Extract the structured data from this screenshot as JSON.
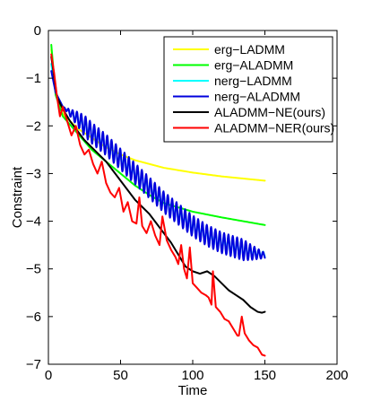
{
  "chart_data": {
    "type": "line",
    "xlabel": "Time",
    "ylabel": "Constraint",
    "xlim": [
      0,
      200
    ],
    "ylim": [
      -7,
      0
    ],
    "xticks": [
      0,
      50,
      100,
      150,
      200
    ],
    "yticks": [
      0,
      -1,
      -2,
      -3,
      -4,
      -5,
      -6,
      -7
    ],
    "grid": false,
    "legend_position": "top-right",
    "series": [
      {
        "name": "erg−LADMM",
        "color": "#ffff00",
        "style": "smooth",
        "x": [
          2,
          5,
          10,
          20,
          30,
          40,
          50,
          60,
          80,
          100,
          120,
          150
        ],
        "y": [
          -0.4,
          -1.3,
          -1.75,
          -2.05,
          -2.25,
          -2.45,
          -2.6,
          -2.72,
          -2.88,
          -2.98,
          -3.06,
          -3.15
        ]
      },
      {
        "name": "erg−ALADMM",
        "color": "#00ff00",
        "style": "smooth",
        "x": [
          2,
          5,
          10,
          20,
          30,
          40,
          50,
          60,
          70,
          80,
          100,
          120,
          150
        ],
        "y": [
          -0.3,
          -1.35,
          -1.8,
          -2.15,
          -2.5,
          -2.75,
          -3.0,
          -3.25,
          -3.45,
          -3.62,
          -3.8,
          -3.92,
          -4.08
        ]
      },
      {
        "name": "nerg−LADMM",
        "color": "#00ffff",
        "style": "oscillating",
        "amp": 0.18,
        "x": [
          2,
          5,
          10,
          20,
          30,
          40,
          50,
          60,
          70,
          80,
          90,
          100,
          110,
          120,
          130,
          140,
          150
        ],
        "y": [
          -0.7,
          -1.3,
          -1.6,
          -1.85,
          -2.15,
          -2.4,
          -2.7,
          -3.0,
          -3.3,
          -3.6,
          -3.85,
          -4.1,
          -4.3,
          -4.45,
          -4.55,
          -4.65,
          -4.7
        ]
      },
      {
        "name": "nerg−ALADMM",
        "color": "#0000dd",
        "style": "oscillating",
        "amp": 0.22,
        "x": [
          2,
          5,
          10,
          20,
          30,
          40,
          50,
          60,
          70,
          80,
          90,
          100,
          110,
          120,
          130,
          140,
          150
        ],
        "y": [
          -0.85,
          -1.3,
          -1.6,
          -1.85,
          -2.15,
          -2.4,
          -2.7,
          -3.0,
          -3.3,
          -3.6,
          -3.85,
          -4.1,
          -4.3,
          -4.45,
          -4.55,
          -4.65,
          -4.72
        ]
      },
      {
        "name": "ALADMM−NE(ours)",
        "color": "#000000",
        "style": "line",
        "x": [
          2,
          6,
          10,
          15,
          20,
          25,
          30,
          35,
          40,
          45,
          50,
          55,
          60,
          65,
          70,
          75,
          80,
          85,
          90,
          95,
          100,
          105,
          110,
          115,
          120,
          125,
          130,
          135,
          140,
          145,
          148,
          150
        ],
        "y": [
          -0.55,
          -1.4,
          -1.65,
          -1.9,
          -2.1,
          -2.3,
          -2.45,
          -2.6,
          -2.75,
          -2.95,
          -3.15,
          -3.35,
          -3.55,
          -3.7,
          -3.85,
          -4.05,
          -4.25,
          -4.45,
          -4.7,
          -4.95,
          -5.05,
          -5.1,
          -5.05,
          -5.15,
          -5.3,
          -5.45,
          -5.55,
          -5.65,
          -5.8,
          -5.9,
          -5.92,
          -5.9
        ]
      },
      {
        "name": "ALADMM−NER(ours)",
        "color": "#ff0000",
        "style": "line",
        "x": [
          2,
          4,
          6,
          8,
          10,
          13,
          16,
          19,
          22,
          25,
          28,
          31,
          34,
          37,
          40,
          43,
          46,
          49,
          52,
          55,
          58,
          61,
          63,
          65,
          68,
          71,
          74,
          77,
          79,
          82,
          85,
          88,
          90,
          92,
          94,
          96,
          98,
          100,
          103,
          106,
          109,
          111,
          113,
          114,
          116,
          119,
          122,
          125,
          128,
          131,
          132,
          134,
          136,
          139,
          142,
          145,
          148,
          150
        ],
        "y": [
          -0.5,
          -0.9,
          -1.4,
          -1.8,
          -1.6,
          -1.9,
          -2.2,
          -2.0,
          -2.4,
          -2.6,
          -2.5,
          -2.8,
          -3.0,
          -2.75,
          -3.2,
          -3.4,
          -3.5,
          -3.3,
          -3.8,
          -3.6,
          -4.0,
          -4.05,
          -3.5,
          -4.1,
          -4.25,
          -4.0,
          -4.3,
          -4.5,
          -3.9,
          -4.4,
          -4.6,
          -4.75,
          -4.9,
          -4.5,
          -5.0,
          -5.2,
          -4.55,
          -5.3,
          -5.4,
          -5.5,
          -5.55,
          -5.6,
          -5.75,
          -5.05,
          -5.8,
          -5.9,
          -6.05,
          -6.1,
          -6.25,
          -6.4,
          -6.4,
          -6.0,
          -6.35,
          -6.5,
          -6.6,
          -6.65,
          -6.8,
          -6.82
        ]
      }
    ]
  }
}
